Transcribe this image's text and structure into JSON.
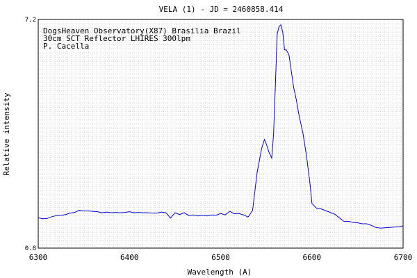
{
  "chart_data": {
    "type": "line",
    "title": "VELA (1) - JD = 2460858.414",
    "xlabel": "Wavelength (A)",
    "ylabel": "Relative intensity",
    "xlim": [
      6300,
      6700
    ],
    "ylim": [
      0.8,
      7.2
    ],
    "x_ticks": [
      6300,
      6400,
      6500,
      6600,
      6700
    ],
    "x_tick_labels": [
      "6300",
      "6400",
      "6500",
      "6600",
      "6700"
    ],
    "y_ticks": [
      0.8,
      7.2
    ],
    "y_tick_labels": [
      "0.8",
      "7.2"
    ],
    "grid": true,
    "annotations": [
      "DogsHeaven Observatory(X87) Brasilia Brazil",
      "30cm SCT Reflector LHIRES 300lpm",
      "P. Cacella"
    ],
    "colors": {
      "line": "#0000cc",
      "grid": "#aaaaaa",
      "axis": "#000000"
    },
    "series": [
      {
        "x": [
          6300,
          6305,
          6310,
          6315,
          6320,
          6325,
          6330,
          6335,
          6340,
          6345,
          6350,
          6355,
          6360,
          6365,
          6370,
          6375,
          6380,
          6385,
          6390,
          6395,
          6400,
          6405,
          6410,
          6415,
          6420,
          6425,
          6430,
          6435,
          6440,
          6445,
          6450,
          6455,
          6460,
          6465,
          6470,
          6475,
          6480,
          6485,
          6490,
          6495,
          6500,
          6505,
          6510,
          6515,
          6520,
          6525,
          6530,
          6535,
          6540,
          6545,
          6548,
          6550,
          6553,
          6556,
          6558,
          6560,
          6562,
          6564,
          6566,
          6568,
          6570,
          6572,
          6575,
          6578,
          6580,
          6583,
          6586,
          6590,
          6594,
          6598,
          6600,
          6605,
          6610,
          6615,
          6620,
          6625,
          6630,
          6635,
          6640,
          6645,
          6650,
          6655,
          6660,
          6665,
          6670,
          6675,
          6680,
          6685,
          6690,
          6695,
          6700
        ],
        "y": [
          1.65,
          1.62,
          1.63,
          1.68,
          1.71,
          1.72,
          1.74,
          1.78,
          1.8,
          1.86,
          1.84,
          1.84,
          1.83,
          1.82,
          1.79,
          1.81,
          1.79,
          1.8,
          1.79,
          1.8,
          1.82,
          1.79,
          1.8,
          1.79,
          1.79,
          1.78,
          1.78,
          1.81,
          1.79,
          1.64,
          1.79,
          1.74,
          1.79,
          1.71,
          1.73,
          1.7,
          1.72,
          1.7,
          1.73,
          1.72,
          1.77,
          1.73,
          1.83,
          1.76,
          1.77,
          1.73,
          1.67,
          1.85,
          2.92,
          3.6,
          3.84,
          3.72,
          3.48,
          3.32,
          3.98,
          5.4,
          6.8,
          7.0,
          7.05,
          6.85,
          6.35,
          6.35,
          6.2,
          5.65,
          5.3,
          4.95,
          4.5,
          4.05,
          3.4,
          2.6,
          2.05,
          1.92,
          1.9,
          1.85,
          1.8,
          1.75,
          1.65,
          1.55,
          1.55,
          1.52,
          1.51,
          1.48,
          1.48,
          1.44,
          1.38,
          1.36,
          1.37,
          1.38,
          1.39,
          1.4,
          1.42
        ]
      }
    ]
  }
}
